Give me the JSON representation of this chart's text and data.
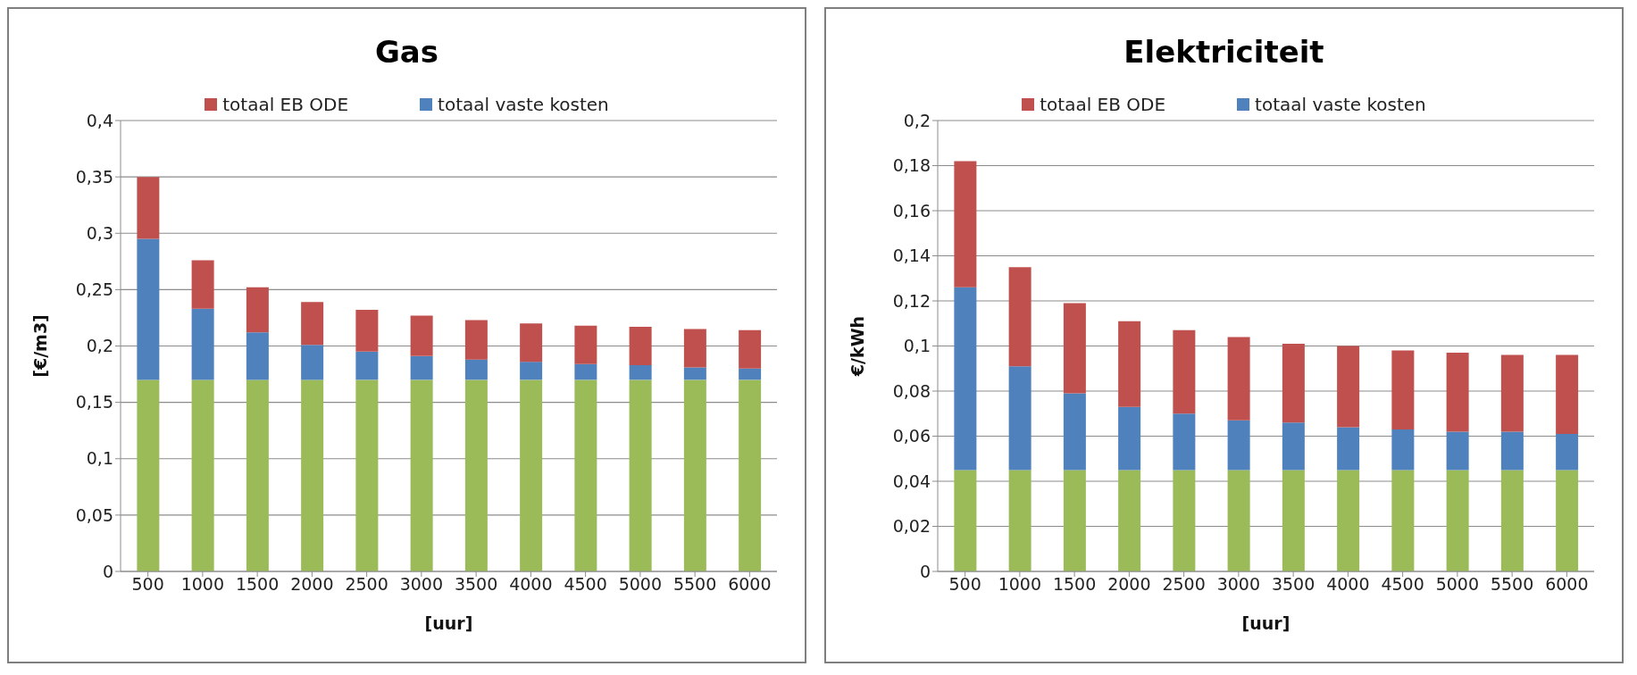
{
  "chart_data": [
    {
      "type": "bar",
      "title": "Gas",
      "xlabel": "[uur]",
      "ylabel": "[€/m3]",
      "categories": [
        "500",
        "1000",
        "1500",
        "2000",
        "2500",
        "3000",
        "3500",
        "4000",
        "4500",
        "5000",
        "5500",
        "6000"
      ],
      "stacked": true,
      "grid": "y",
      "legend": "top",
      "ylim": [
        0,
        0.4
      ],
      "yticks": [
        0,
        {
          "value": 0.05,
          "label": "0,05"
        },
        {
          "value": 0.1,
          "label": "0,1"
        },
        {
          "value": 0.15,
          "label": "0,15"
        },
        {
          "value": 0.2,
          "label": "0,2"
        },
        {
          "value": 0.25,
          "label": "0,25"
        },
        {
          "value": 0.3,
          "label": "0,3"
        },
        {
          "value": 0.35,
          "label": "0,35"
        },
        {
          "value": 0.4,
          "label": "0,4"
        }
      ],
      "series": [
        {
          "color": "#9bbb59",
          "values": [
            0.17,
            0.17,
            0.17,
            0.17,
            0.17,
            0.17,
            0.17,
            0.17,
            0.17,
            0.17,
            0.17,
            0.17
          ]
        },
        {
          "name": "totaal vaste kosten",
          "color": "#4f81bd",
          "values": [
            0.125,
            0.063,
            0.042,
            0.031,
            0.025,
            0.021,
            0.018,
            0.016,
            0.014,
            0.013,
            0.011,
            0.01
          ]
        },
        {
          "name": "totaal EB ODE",
          "color": "#c0504d",
          "values": [
            0.055,
            0.043,
            0.04,
            0.038,
            0.037,
            0.036,
            0.035,
            0.034,
            0.034,
            0.034,
            0.034,
            0.034
          ]
        }
      ]
    },
    {
      "type": "bar",
      "title": "Elektriciteit",
      "xlabel": "[uur]",
      "ylabel": "€/kWh",
      "categories": [
        "500",
        "1000",
        "1500",
        "2000",
        "2500",
        "3000",
        "3500",
        "4000",
        "4500",
        "5000",
        "5500",
        "6000"
      ],
      "stacked": true,
      "grid": "y",
      "legend": "top",
      "ylim": [
        0,
        0.2
      ],
      "yticks": [
        0,
        {
          "value": 0.02,
          "label": "0,02"
        },
        {
          "value": 0.04,
          "label": "0,04"
        },
        {
          "value": 0.06,
          "label": "0,06"
        },
        {
          "value": 0.08,
          "label": "0,08"
        },
        {
          "value": 0.1,
          "label": "0,1"
        },
        {
          "value": 0.12,
          "label": "0,12"
        },
        {
          "value": 0.14,
          "label": "0,14"
        },
        {
          "value": 0.16,
          "label": "0,16"
        },
        {
          "value": 0.18,
          "label": "0,18"
        },
        {
          "value": 0.2,
          "label": "0,2"
        }
      ],
      "series": [
        {
          "color": "#9bbb59",
          "values": [
            0.045,
            0.045,
            0.045,
            0.045,
            0.045,
            0.045,
            0.045,
            0.045,
            0.045,
            0.045,
            0.045,
            0.045
          ]
        },
        {
          "name": "totaal vaste kosten",
          "color": "#4f81bd",
          "values": [
            0.081,
            0.046,
            0.034,
            0.028,
            0.025,
            0.022,
            0.021,
            0.019,
            0.018,
            0.017,
            0.017,
            0.016
          ]
        },
        {
          "name": "totaal EB ODE",
          "color": "#c0504d",
          "values": [
            0.056,
            0.044,
            0.04,
            0.038,
            0.037,
            0.037,
            0.035,
            0.036,
            0.035,
            0.035,
            0.034,
            0.035
          ]
        }
      ]
    }
  ]
}
